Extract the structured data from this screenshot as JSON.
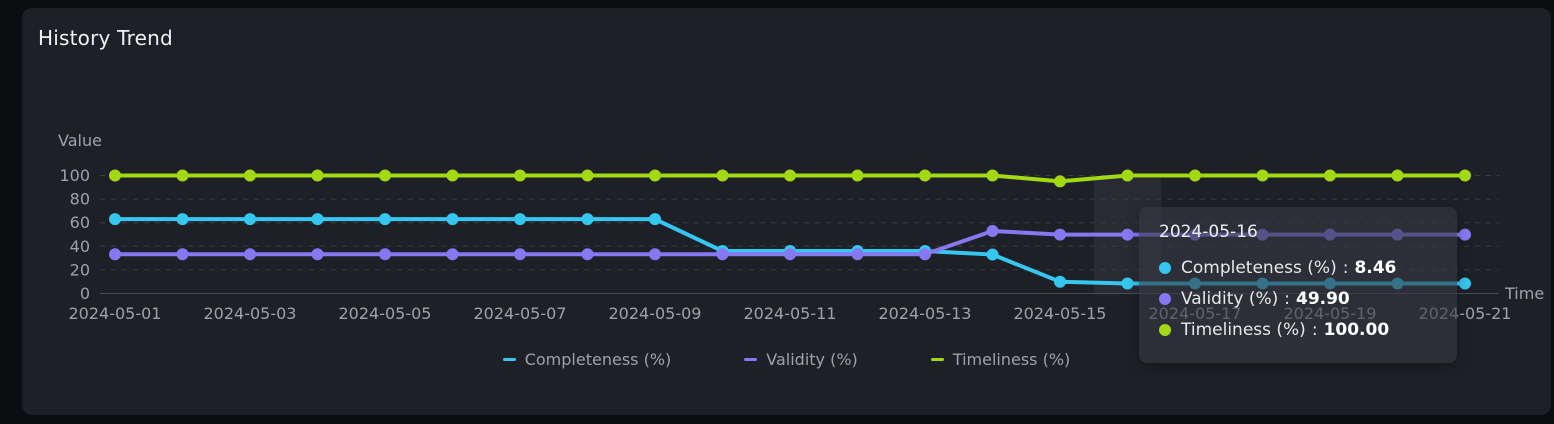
{
  "card": {
    "title": "History Trend"
  },
  "axes": {
    "y_title": "Value",
    "x_title": "Time",
    "y_ticks": [
      0,
      20,
      40,
      60,
      80,
      100
    ]
  },
  "chart_data": {
    "type": "line",
    "title": "History Trend",
    "xlabel": "Time",
    "ylabel": "Value",
    "ylim": [
      0,
      100
    ],
    "grid": "horizontal-dashed",
    "legend_position": "bottom",
    "x_label_every": 2,
    "x": [
      "2024-05-01",
      "2024-05-02",
      "2024-05-03",
      "2024-05-04",
      "2024-05-05",
      "2024-05-06",
      "2024-05-07",
      "2024-05-08",
      "2024-05-09",
      "2024-05-10",
      "2024-05-11",
      "2024-05-12",
      "2024-05-13",
      "2024-05-14",
      "2024-05-15",
      "2024-05-16",
      "2024-05-17",
      "2024-05-18",
      "2024-05-19",
      "2024-05-20",
      "2024-05-21"
    ],
    "series": [
      {
        "name": "Completeness (%)",
        "color": "#35c7f0",
        "values": [
          63,
          63,
          63,
          63,
          63,
          63,
          63,
          63,
          63,
          36,
          36,
          36,
          36,
          33,
          10,
          8.46,
          8.46,
          8.46,
          8.46,
          8.46,
          8.46
        ]
      },
      {
        "name": "Validity (%)",
        "color": "#8678f0",
        "values": [
          33.3,
          33.3,
          33.3,
          33.3,
          33.3,
          33.3,
          33.3,
          33.3,
          33.3,
          33.3,
          33.3,
          33.3,
          33.3,
          53,
          49.9,
          49.9,
          49.9,
          49.9,
          49.9,
          49.9,
          49.9
        ]
      },
      {
        "name": "Timeliness (%)",
        "color": "#a2d912",
        "values": [
          100,
          100,
          100,
          100,
          100,
          100,
          100,
          100,
          100,
          100,
          100,
          100,
          100,
          100,
          95,
          100,
          100,
          100,
          100,
          100,
          100
        ]
      }
    ]
  },
  "tooltip": {
    "date": "2024-05-16",
    "highlight_index": 15,
    "separator": ":",
    "rows": [
      {
        "series": "Completeness (%)",
        "value": "8.46"
      },
      {
        "series": "Validity (%)",
        "value": "49.90"
      },
      {
        "series": "Timeliness (%)",
        "value": "100.00"
      }
    ]
  },
  "colors": {
    "page_bg": "#0c0d11",
    "card_bg": "#1e2028",
    "grid_line": "#3a3e47",
    "axis_line": "#474c57",
    "axis_text": "#9da2aa",
    "title_text": "#f0f1f3",
    "hover_band": "rgba(255,255,255,0.05)",
    "tooltip_bg": "rgba(54,57,67,0.6)"
  }
}
